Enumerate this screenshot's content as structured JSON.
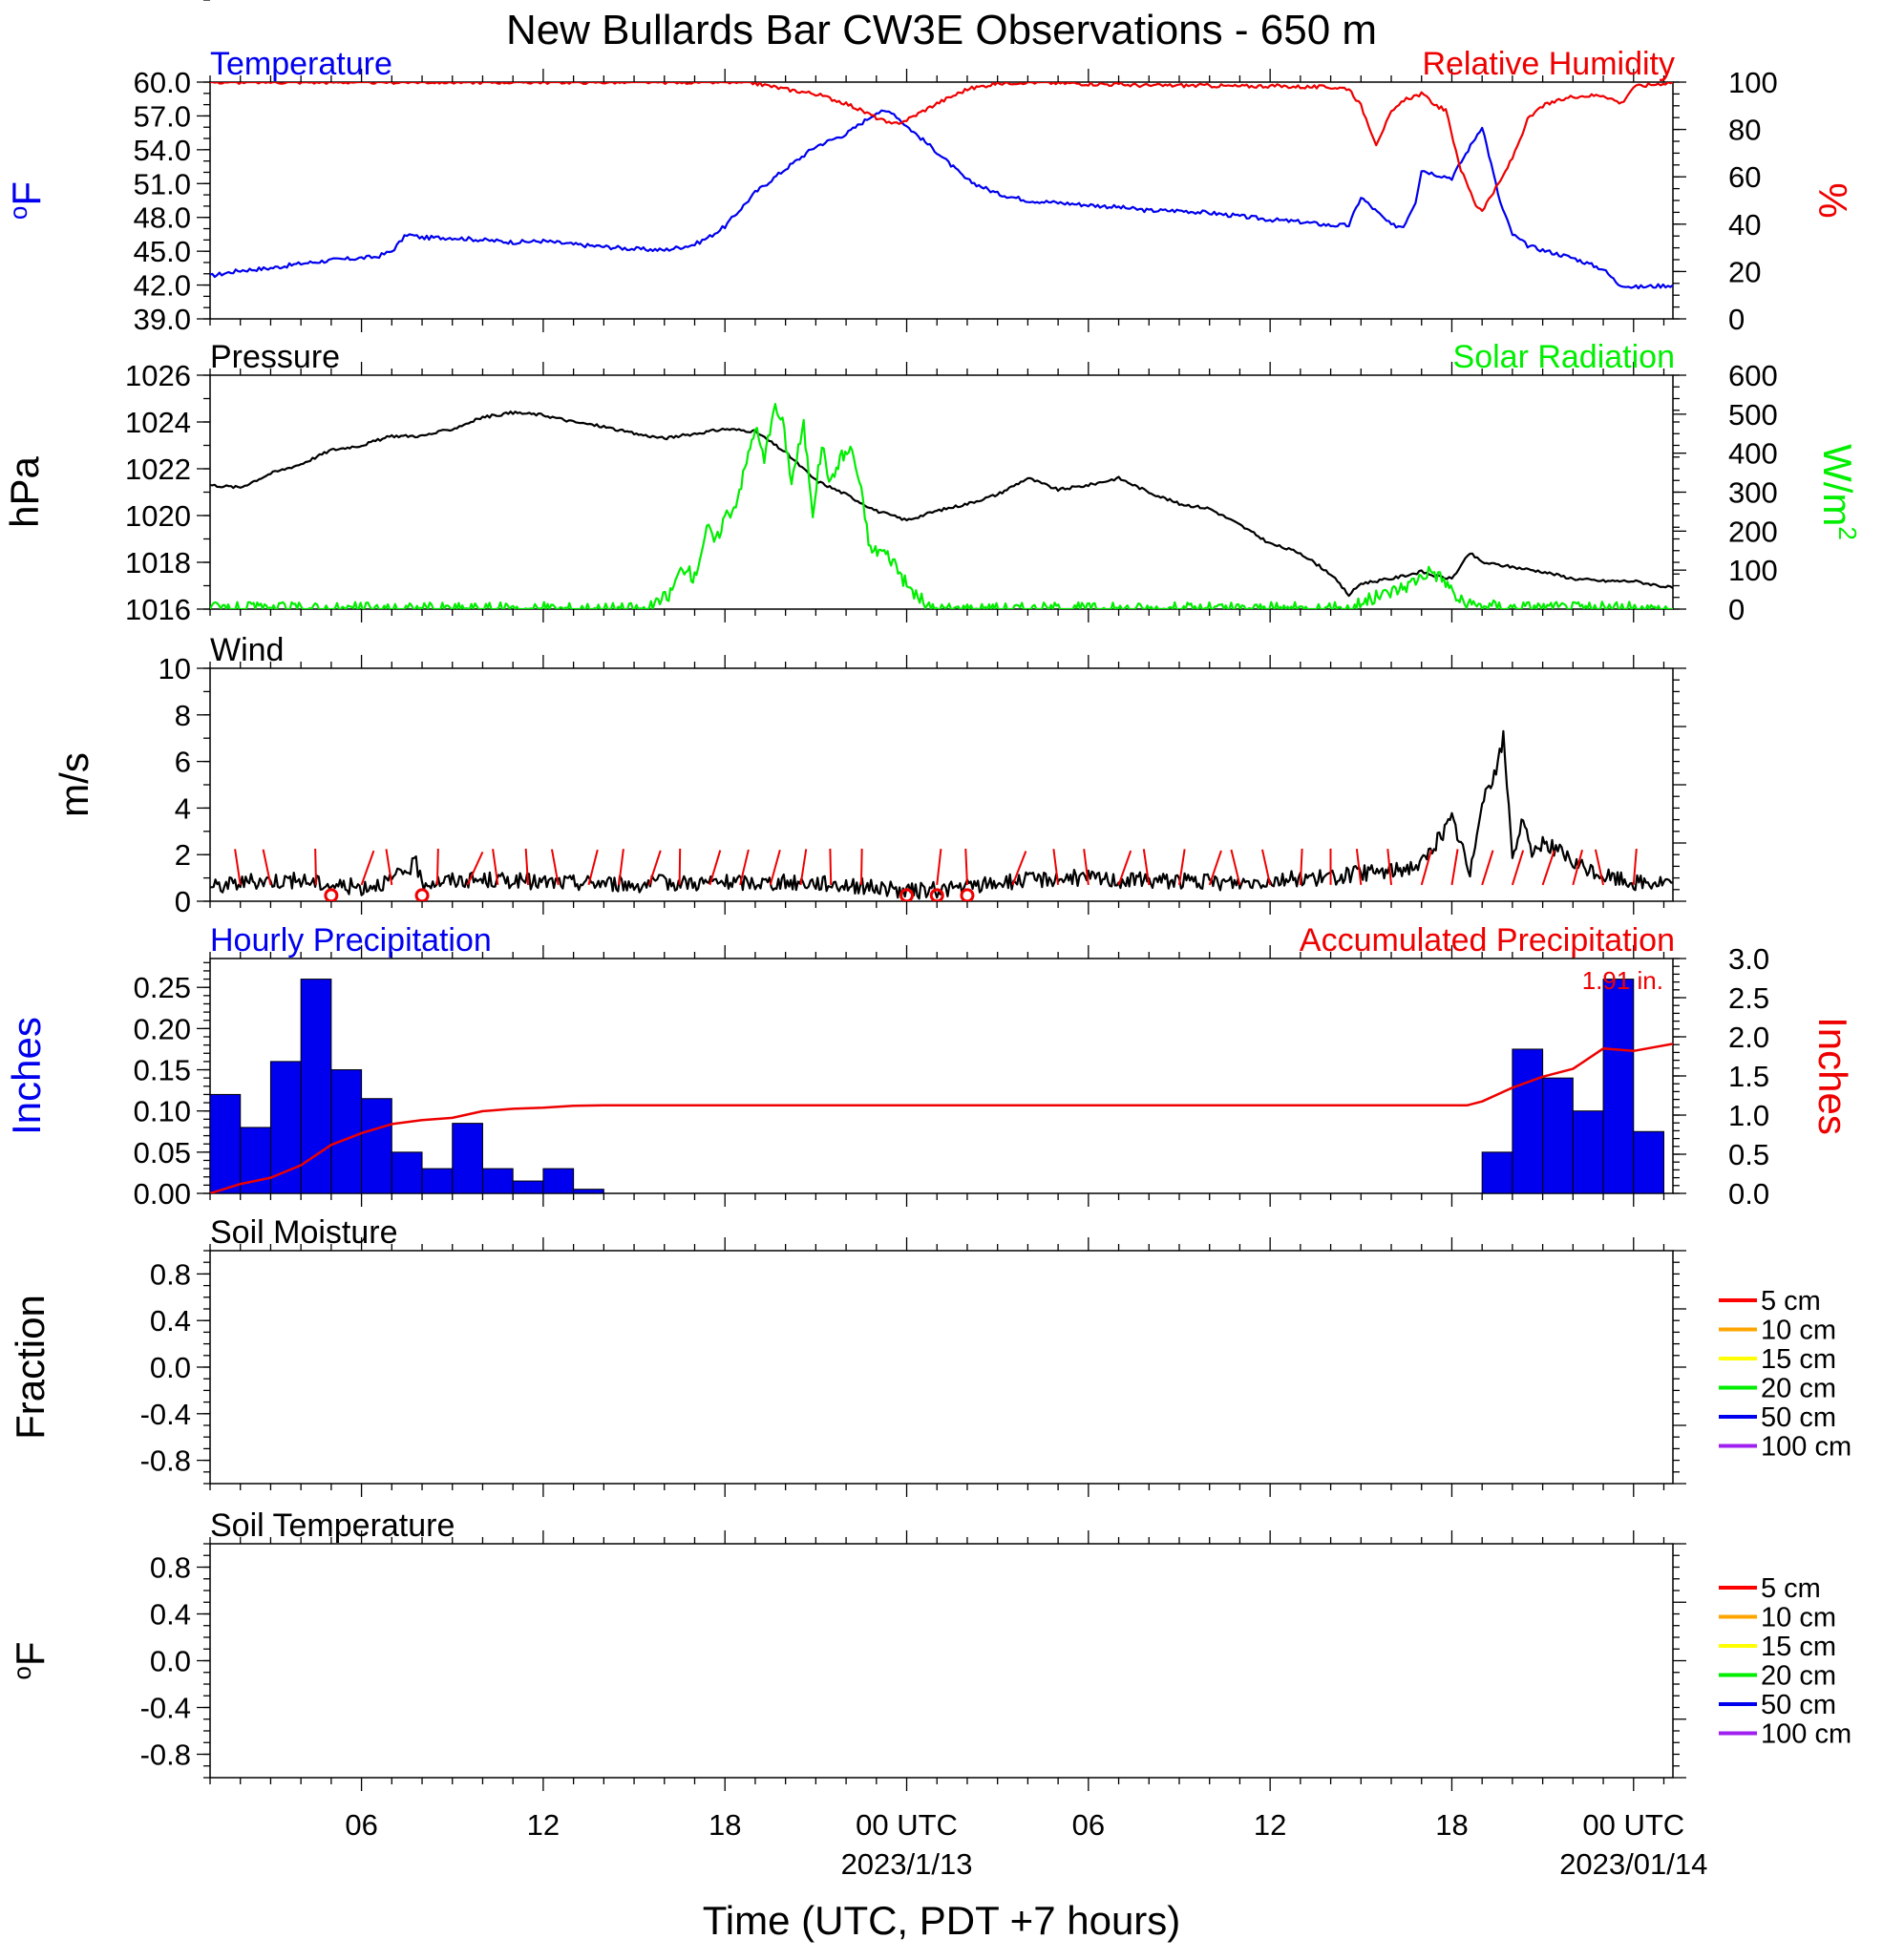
{
  "colors": {
    "blue": "#0000ee",
    "red": "#ee0000",
    "green": "#00ee00",
    "black": "#000000",
    "bar": "#0000ee",
    "soil_5cm": "#ff0000",
    "soil_10cm": "#ffa500",
    "soil_15cm": "#ffff00",
    "soil_20cm": "#00ee00",
    "soil_50cm": "#0000ee",
    "soil_100cm": "#a020f0"
  },
  "chart_data": {
    "type": "line",
    "title": "New Bullards Bar CW3E Observations - 650 m",
    "xlabel": "Time (UTC, PDT +7 hours)",
    "x_unit": "hours since 2023-01-12 00 UTC",
    "xlim": [
      1,
      49.3
    ],
    "x_ticks": [
      {
        "x": 6,
        "line1": "06",
        "line2": ""
      },
      {
        "x": 12,
        "line1": "12",
        "line2": ""
      },
      {
        "x": 18,
        "line1": "18",
        "line2": ""
      },
      {
        "x": 24,
        "line1": "00 UTC",
        "line2": "2023/1/13"
      },
      {
        "x": 30,
        "line1": "06",
        "line2": ""
      },
      {
        "x": 36,
        "line1": "12",
        "line2": ""
      },
      {
        "x": 42,
        "line1": "18",
        "line2": ""
      },
      {
        "x": 48,
        "line1": "00 UTC",
        "line2": "2023/01/14"
      }
    ],
    "panels": [
      {
        "id": "temperature_rh",
        "left_title": "Temperature",
        "right_title": "Relative Humidity",
        "ylabel_left": "°F",
        "ylabel_right": "%",
        "ylim_left": [
          39,
          60
        ],
        "yticks_left": [
          "39.0",
          "42.0",
          "45.0",
          "48.0",
          "51.0",
          "54.0",
          "57.0",
          "60.0"
        ],
        "ylim_right": [
          0,
          100
        ],
        "yticks_right": [
          "0",
          "20",
          "40",
          "60",
          "80",
          "100"
        ],
        "series": [
          {
            "name": "Temperature",
            "axis": "left",
            "color": "blue",
            "x": [
              1,
              2,
              3,
              4,
              5,
              6,
              6.5,
              7,
              7.5,
              8,
              9,
              10,
              11,
              12,
              13,
              14,
              15,
              16,
              17,
              17.5,
              18,
              19,
              20,
              21,
              22,
              23,
              23.5,
              24,
              25,
              26,
              27,
              28,
              29,
              30,
              31,
              32,
              33,
              34,
              35,
              36,
              37,
              38,
              38.6,
              39,
              40,
              40.4,
              40.8,
              41,
              41.5,
              42,
              43,
              43.6,
              44,
              44.5,
              45,
              46,
              47,
              47.5,
              48,
              49.3
            ],
            "y": [
              42.8,
              43.3,
              43.5,
              43.9,
              44.2,
              44.4,
              44.5,
              45,
              46.5,
              46.2,
              46.2,
              46,
              45.8,
              45.9,
              45.6,
              45.4,
              45.2,
              45.1,
              45.6,
              46.3,
              47.2,
              50.2,
              52.3,
              54.3,
              55.4,
              57.3,
              57.4,
              56.1,
              53.8,
              51.3,
              50.1,
              49.5,
              49.3,
              49.1,
              48.9,
              48.6,
              48.6,
              48.4,
              48.1,
              47.8,
              47.6,
              47.3,
              47.3,
              49.8,
              47.3,
              47.2,
              49.4,
              52.2,
              51.8,
              51.5,
              56.1,
              49.3,
              46.5,
              45.5,
              45.1,
              44.4,
              43.4,
              42.1,
              41.8,
              42.0
            ]
          },
          {
            "name": "Relative Humidity",
            "axis": "right",
            "color": "red",
            "x": [
              1,
              5,
              10,
              15,
              18,
              19,
              20,
              21,
              22,
              23,
              23.5,
              24,
              25,
              26,
              27,
              28,
              29,
              30,
              31,
              32,
              33,
              34,
              35,
              36,
              37,
              38,
              38.6,
              39,
              39.5,
              40,
              40.5,
              41,
              41.5,
              41.8,
              42.3,
              42.8,
              43,
              43.6,
              44,
              44.5,
              45,
              46,
              47,
              47.6,
              48,
              49.3
            ],
            "y": [
              100,
              100,
              100,
              100,
              100,
              99.5,
              97,
              95,
              91,
              85,
              82,
              84,
              91,
              97,
              99.5,
              100,
              99.6,
              99.3,
              99,
              98.5,
              98.6,
              98.5,
              98.2,
              98.4,
              98.0,
              97.8,
              97.3,
              90,
              74,
              87,
              93,
              95,
              90,
              88,
              63,
              48,
              46,
              58,
              68,
              84,
              90,
              94,
              94.5,
              91,
              98,
              100
            ]
          }
        ]
      },
      {
        "id": "pressure_solar",
        "left_title": "Pressure",
        "right_title": "Solar Radiation",
        "ylabel_left": "hPa",
        "ylabel_right": "W/m",
        "ylabel_right_sup": "2",
        "ylim_left": [
          1016,
          1026
        ],
        "yticks_left": [
          "1016",
          "1018",
          "1020",
          "1022",
          "1024",
          "1026"
        ],
        "ylim_right": [
          0,
          600
        ],
        "yticks_right": [
          "0",
          "100",
          "200",
          "300",
          "400",
          "500",
          "600"
        ],
        "series": [
          {
            "name": "Pressure",
            "axis": "left",
            "color": "black",
            "x": [
              1,
              2,
              3,
              4,
              5,
              6,
              7,
              8,
              9,
              10,
              11,
              12,
              13,
              14,
              15,
              16,
              17,
              18,
              19,
              20,
              21,
              22,
              23,
              24,
              25,
              26,
              27,
              28,
              29,
              30,
              31,
              32,
              33,
              34,
              35,
              36,
              37,
              38,
              38.6,
              39,
              40,
              41,
              41.5,
              42,
              42.6,
              43,
              44,
              45,
              46,
              47,
              48,
              49.3
            ],
            "y": [
              1021.3,
              1021.2,
              1021.8,
              1022.2,
              1022.8,
              1023.0,
              1023.4,
              1023.4,
              1023.7,
              1024.2,
              1024.4,
              1024.3,
              1024.0,
              1023.8,
              1023.5,
              1023.3,
              1023.5,
              1023.7,
              1023.6,
              1022.7,
              1021.5,
              1020.9,
              1020.2,
              1019.8,
              1020.2,
              1020.5,
              1020.9,
              1021.6,
              1021.1,
              1021.3,
              1021.6,
              1021.0,
              1020.5,
              1020.3,
              1019.6,
              1018.8,
              1018.4,
              1017.5,
              1016.6,
              1017.1,
              1017.3,
              1017.6,
              1017.4,
              1017.3,
              1018.4,
              1018.0,
              1017.8,
              1017.6,
              1017.3,
              1017.2,
              1017.2,
              1016.9
            ]
          },
          {
            "name": "Solar Radiation",
            "axis": "right",
            "color": "green",
            "x": [
              1,
              15.5,
              16.2,
              16.6,
              17,
              17.4,
              17.7,
              18,
              18.3,
              18.6,
              19,
              19.3,
              19.6,
              19.9,
              20.2,
              20.6,
              20.9,
              21.2,
              21.5,
              21.8,
              22.2,
              22.5,
              22.8,
              23.2,
              23.6,
              24,
              24.8,
              38.5,
              39.5,
              40.5,
              41.3,
              41.8,
              42.2,
              42.6,
              43,
              43.5,
              44,
              46,
              49.3
            ],
            "y": [
              0,
              0,
              40,
              110,
              80,
              210,
              170,
              240,
              260,
              340,
              470,
              380,
              520,
              480,
              330,
              470,
              250,
              420,
              320,
              390,
              410,
              300,
              150,
              150,
              120,
              60,
              0,
              0,
              30,
              60,
              100,
              70,
              25,
              8,
              10,
              6,
              5,
              2,
              0
            ]
          }
        ]
      },
      {
        "id": "wind",
        "left_title": "Wind",
        "ylabel_left": "m/s",
        "ylim_left": [
          0,
          10
        ],
        "yticks_left": [
          "0",
          "2",
          "4",
          "6",
          "8",
          "10"
        ],
        "series": [
          {
            "name": "Wind",
            "axis": "left",
            "color": "black",
            "x": [
              1,
              2,
              3,
              4,
              5,
              6,
              7,
              7.8,
              8,
              9,
              10,
              11,
              12,
              13,
              14,
              15,
              16,
              17,
              18,
              19,
              20,
              21,
              22,
              23,
              24,
              25,
              26,
              27,
              28,
              29,
              30,
              31,
              32,
              33,
              34,
              35,
              36,
              37,
              38,
              39,
              40,
              41,
              42,
              42.3,
              42.6,
              43,
              43.4,
              43.7,
              44,
              44.3,
              44.7,
              45,
              45.5,
              46,
              47,
              48,
              49.3
            ],
            "y": [
              0.6,
              0.8,
              0.9,
              0.9,
              0.7,
              0.6,
              0.9,
              1.6,
              0.8,
              0.9,
              0.9,
              0.9,
              0.8,
              0.8,
              0.8,
              0.7,
              0.8,
              0.8,
              0.8,
              0.8,
              0.8,
              0.8,
              0.7,
              0.6,
              0.4,
              0.5,
              0.6,
              0.8,
              0.9,
              1.0,
              1.0,
              0.9,
              0.9,
              0.9,
              0.8,
              0.8,
              0.9,
              1.0,
              1.0,
              1.2,
              1.3,
              1.6,
              3.5,
              2.5,
              1.0,
              4.5,
              5.3,
              7.0,
              2.0,
              3.3,
              2.0,
              2.6,
              2.2,
              1.6,
              1.1,
              0.8,
              0.8
            ]
          }
        ],
        "barbs": {
          "color": "red",
          "x": [
            2,
            3,
            4.5,
            6,
            7,
            8.5,
            9.5,
            10.5,
            11.5,
            12.5,
            13.5,
            14.5,
            15.5,
            16.5,
            17.5,
            18.5,
            19.5,
            20.5,
            21.5,
            22.5,
            25,
            26,
            27.5,
            29,
            30,
            31,
            32,
            33,
            34,
            35,
            36,
            37,
            38,
            39,
            40,
            41,
            42,
            43,
            44,
            45,
            46,
            47,
            48
          ],
          "calm_x": [
            5,
            8,
            24,
            25,
            26
          ]
        }
      },
      {
        "id": "precipitation",
        "left_title": "Hourly Precipitation",
        "right_title": "Accumulated Precipitation",
        "annotation": "1.91 in.",
        "ylabel_left": "Inches",
        "ylabel_right": "Inches",
        "ylim_left": [
          0,
          0.285
        ],
        "yticks_left": [
          "0.00",
          "0.05",
          "0.10",
          "0.15",
          "0.20",
          "0.25"
        ],
        "ylim_right": [
          0,
          3.0
        ],
        "yticks_right": [
          "0.0",
          "0.5",
          "1.0",
          "1.5",
          "2.0",
          "2.5",
          "3.0"
        ],
        "bars": {
          "name": "Hourly Precipitation",
          "axis": "left",
          "color": "bar",
          "x_start": [
            1,
            2,
            3,
            4,
            5,
            6,
            7,
            8,
            9,
            10,
            11,
            12,
            13,
            43,
            44,
            45,
            46,
            47,
            48
          ],
          "values": [
            0.12,
            0.08,
            0.16,
            0.26,
            0.15,
            0.115,
            0.05,
            0.03,
            0.085,
            0.03,
            0.015,
            0.03,
            0.005,
            0.05,
            0.175,
            0.14,
            0.1,
            0.26,
            0.075
          ]
        },
        "series": [
          {
            "name": "Accumulated Precipitation",
            "axis": "right",
            "color": "red",
            "x": [
              1,
              2,
              3,
              4,
              5,
              6,
              7,
              8,
              9,
              10,
              11,
              12,
              13,
              14,
              42.5,
              43,
              44,
              45,
              46,
              47,
              48,
              49.3
            ],
            "y": [
              0.0,
              0.12,
              0.2,
              0.36,
              0.62,
              0.77,
              0.885,
              0.935,
              0.965,
              1.05,
              1.08,
              1.095,
              1.12,
              1.125,
              1.125,
              1.175,
              1.35,
              1.49,
              1.59,
              1.85,
              1.82,
              1.91
            ]
          }
        ]
      },
      {
        "id": "soil_moisture",
        "left_title": "Soil Moisture",
        "ylabel_left": "Fraction",
        "ylim_left": [
          -1,
          1
        ],
        "yticks_left": [
          "-0.8",
          "-0.4",
          "0.0",
          "0.4",
          "0.8"
        ],
        "legend": [
          {
            "label": "5 cm",
            "color": "soil_5cm"
          },
          {
            "label": "10 cm",
            "color": "soil_10cm"
          },
          {
            "label": "15 cm",
            "color": "soil_15cm"
          },
          {
            "label": "20 cm",
            "color": "soil_20cm"
          },
          {
            "label": "50 cm",
            "color": "soil_50cm"
          },
          {
            "label": "100 cm",
            "color": "soil_100cm"
          }
        ],
        "series": []
      },
      {
        "id": "soil_temperature",
        "left_title": "Soil Temperature",
        "ylabel_left": "°F",
        "ylim_left": [
          -1,
          1
        ],
        "yticks_left": [
          "-0.8",
          "-0.4",
          "0.0",
          "0.4",
          "0.8"
        ],
        "legend": [
          {
            "label": "5 cm",
            "color": "soil_5cm"
          },
          {
            "label": "10 cm",
            "color": "soil_10cm"
          },
          {
            "label": "15 cm",
            "color": "soil_15cm"
          },
          {
            "label": "20 cm",
            "color": "soil_20cm"
          },
          {
            "label": "50 cm",
            "color": "soil_50cm"
          },
          {
            "label": "100 cm",
            "color": "soil_100cm"
          }
        ],
        "series": []
      }
    ]
  }
}
